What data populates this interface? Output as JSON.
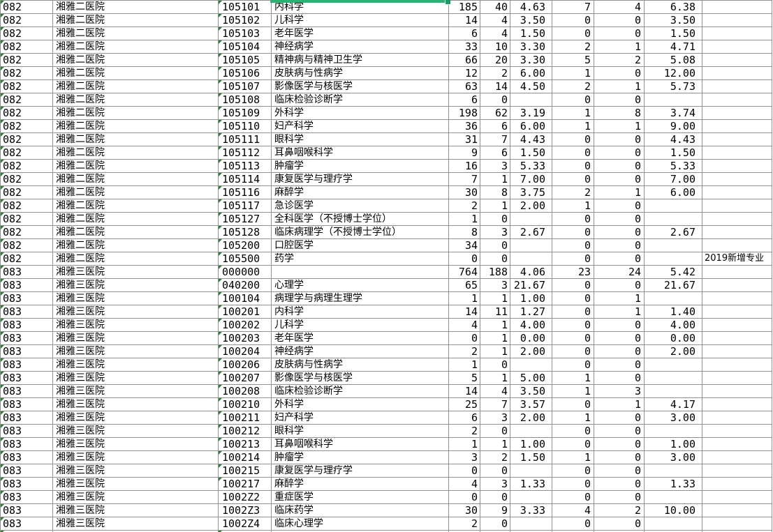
{
  "colors": {
    "gridline": "#909090",
    "triangle": "#2E7D32",
    "selection": "#2BB273",
    "selection_handle": "#12A05F",
    "cell_text": "#000000",
    "background": "#FFFFFF"
  },
  "selection": {
    "note_visible_part": "bottom-border-and-fill-handle"
  },
  "table": {
    "rows": [
      {
        "org_code": "082",
        "org_name": "湘雅二医院",
        "major_code": "105101",
        "major_name": "内科学",
        "n1": "185",
        "n2": "40",
        "r1": "4.63",
        "n3": "7",
        "n4": "4",
        "r2": "6.38",
        "note": ""
      },
      {
        "org_code": "082",
        "org_name": "湘雅二医院",
        "major_code": "105102",
        "major_name": "儿科学",
        "n1": "14",
        "n2": "4",
        "r1": "3.50",
        "n3": "0",
        "n4": "0",
        "r2": "3.50",
        "note": ""
      },
      {
        "org_code": "082",
        "org_name": "湘雅二医院",
        "major_code": "105103",
        "major_name": "老年医学",
        "n1": "6",
        "n2": "4",
        "r1": "1.50",
        "n3": "0",
        "n4": "0",
        "r2": "1.50",
        "note": ""
      },
      {
        "org_code": "082",
        "org_name": "湘雅二医院",
        "major_code": "105104",
        "major_name": "神经病学",
        "n1": "33",
        "n2": "10",
        "r1": "3.30",
        "n3": "2",
        "n4": "1",
        "r2": "4.71",
        "note": ""
      },
      {
        "org_code": "082",
        "org_name": "湘雅二医院",
        "major_code": "105105",
        "major_name": "精神病与精神卫生学",
        "n1": "66",
        "n2": "20",
        "r1": "3.30",
        "n3": "5",
        "n4": "2",
        "r2": "5.08",
        "note": ""
      },
      {
        "org_code": "082",
        "org_name": "湘雅二医院",
        "major_code": "105106",
        "major_name": "皮肤病与性病学",
        "n1": "12",
        "n2": "2",
        "r1": "6.00",
        "n3": "1",
        "n4": "0",
        "r2": "12.00",
        "note": ""
      },
      {
        "org_code": "082",
        "org_name": "湘雅二医院",
        "major_code": "105107",
        "major_name": "影像医学与核医学",
        "n1": "63",
        "n2": "14",
        "r1": "4.50",
        "n3": "2",
        "n4": "1",
        "r2": "5.73",
        "note": ""
      },
      {
        "org_code": "082",
        "org_name": "湘雅二医院",
        "major_code": "105108",
        "major_name": "临床检验诊断学",
        "n1": "6",
        "n2": "0",
        "r1": "",
        "n3": "0",
        "n4": "0",
        "r2": "",
        "note": ""
      },
      {
        "org_code": "082",
        "org_name": "湘雅二医院",
        "major_code": "105109",
        "major_name": "外科学",
        "n1": "198",
        "n2": "62",
        "r1": "3.19",
        "n3": "1",
        "n4": "8",
        "r2": "3.74",
        "note": ""
      },
      {
        "org_code": "082",
        "org_name": "湘雅二医院",
        "major_code": "105110",
        "major_name": "妇产科学",
        "n1": "36",
        "n2": "6",
        "r1": "6.00",
        "n3": "1",
        "n4": "1",
        "r2": "9.00",
        "note": ""
      },
      {
        "org_code": "082",
        "org_name": "湘雅二医院",
        "major_code": "105111",
        "major_name": "眼科学",
        "n1": "31",
        "n2": "7",
        "r1": "4.43",
        "n3": "0",
        "n4": "0",
        "r2": "4.43",
        "note": ""
      },
      {
        "org_code": "082",
        "org_name": "湘雅二医院",
        "major_code": "105112",
        "major_name": "耳鼻咽喉科学",
        "n1": "9",
        "n2": "6",
        "r1": "1.50",
        "n3": "0",
        "n4": "0",
        "r2": "1.50",
        "note": ""
      },
      {
        "org_code": "082",
        "org_name": "湘雅二医院",
        "major_code": "105113",
        "major_name": "肿瘤学",
        "n1": "16",
        "n2": "3",
        "r1": "5.33",
        "n3": "0",
        "n4": "0",
        "r2": "5.33",
        "note": ""
      },
      {
        "org_code": "082",
        "org_name": "湘雅二医院",
        "major_code": "105114",
        "major_name": "康复医学与理疗学",
        "n1": "7",
        "n2": "1",
        "r1": "7.00",
        "n3": "0",
        "n4": "0",
        "r2": "7.00",
        "note": ""
      },
      {
        "org_code": "082",
        "org_name": "湘雅二医院",
        "major_code": "105116",
        "major_name": "麻醉学",
        "n1": "30",
        "n2": "8",
        "r1": "3.75",
        "n3": "2",
        "n4": "1",
        "r2": "6.00",
        "note": ""
      },
      {
        "org_code": "082",
        "org_name": "湘雅二医院",
        "major_code": "105117",
        "major_name": "急诊医学",
        "n1": "2",
        "n2": "1",
        "r1": "2.00",
        "n3": "1",
        "n4": "0",
        "r2": "",
        "note": ""
      },
      {
        "org_code": "082",
        "org_name": "湘雅二医院",
        "major_code": "105127",
        "major_name": "全科医学（不授博士学位）",
        "n1": "1",
        "n2": "0",
        "r1": "",
        "n3": "0",
        "n4": "0",
        "r2": "",
        "note": ""
      },
      {
        "org_code": "082",
        "org_name": "湘雅二医院",
        "major_code": "105128",
        "major_name": "临床病理学（不授博士学位）",
        "n1": "8",
        "n2": "3",
        "r1": "2.67",
        "n3": "0",
        "n4": "0",
        "r2": "2.67",
        "note": ""
      },
      {
        "org_code": "082",
        "org_name": "湘雅二医院",
        "major_code": "105200",
        "major_name": "口腔医学",
        "n1": "34",
        "n2": "0",
        "r1": "",
        "n3": "0",
        "n4": "0",
        "r2": "",
        "note": ""
      },
      {
        "org_code": "082",
        "org_name": "湘雅二医院",
        "major_code": "105500",
        "major_name": "药学",
        "n1": "0",
        "n2": "0",
        "r1": "",
        "n3": "0",
        "n4": "0",
        "r2": "",
        "note": "2019新增专业"
      },
      {
        "org_code": "083",
        "org_name": "湘雅三医院",
        "major_code": "000000",
        "major_name": "",
        "n1": "764",
        "n2": "188",
        "r1": "4.06",
        "n3": "23",
        "n4": "24",
        "r2": "5.42",
        "note": ""
      },
      {
        "org_code": "083",
        "org_name": "湘雅三医院",
        "major_code": "040200",
        "major_name": "心理学",
        "n1": "65",
        "n2": "3",
        "r1": "21.67",
        "n3": "0",
        "n4": "0",
        "r2": "21.67",
        "note": ""
      },
      {
        "org_code": "083",
        "org_name": "湘雅三医院",
        "major_code": "100104",
        "major_name": "病理学与病理生理学",
        "n1": "1",
        "n2": "1",
        "r1": "1.00",
        "n3": "0",
        "n4": "1",
        "r2": "",
        "note": ""
      },
      {
        "org_code": "083",
        "org_name": "湘雅三医院",
        "major_code": "100201",
        "major_name": "内科学",
        "n1": "14",
        "n2": "11",
        "r1": "1.27",
        "n3": "0",
        "n4": "1",
        "r2": "1.40",
        "note": ""
      },
      {
        "org_code": "083",
        "org_name": "湘雅三医院",
        "major_code": "100202",
        "major_name": "儿科学",
        "n1": "4",
        "n2": "1",
        "r1": "4.00",
        "n3": "0",
        "n4": "0",
        "r2": "4.00",
        "note": ""
      },
      {
        "org_code": "083",
        "org_name": "湘雅三医院",
        "major_code": "100203",
        "major_name": "老年医学",
        "n1": "0",
        "n2": "1",
        "r1": "0.00",
        "n3": "0",
        "n4": "0",
        "r2": "0.00",
        "note": ""
      },
      {
        "org_code": "083",
        "org_name": "湘雅三医院",
        "major_code": "100204",
        "major_name": "神经病学",
        "n1": "2",
        "n2": "1",
        "r1": "2.00",
        "n3": "0",
        "n4": "0",
        "r2": "2.00",
        "note": ""
      },
      {
        "org_code": "083",
        "org_name": "湘雅三医院",
        "major_code": "100206",
        "major_name": "皮肤病与性病学",
        "n1": "1",
        "n2": "0",
        "r1": "",
        "n3": "0",
        "n4": "0",
        "r2": "",
        "note": ""
      },
      {
        "org_code": "083",
        "org_name": "湘雅三医院",
        "major_code": "100207",
        "major_name": "影像医学与核医学",
        "n1": "5",
        "n2": "1",
        "r1": "5.00",
        "n3": "1",
        "n4": "0",
        "r2": "",
        "note": ""
      },
      {
        "org_code": "083",
        "org_name": "湘雅三医院",
        "major_code": "100208",
        "major_name": "临床检验诊断学",
        "n1": "14",
        "n2": "4",
        "r1": "3.50",
        "n3": "1",
        "n4": "3",
        "r2": "",
        "note": ""
      },
      {
        "org_code": "083",
        "org_name": "湘雅三医院",
        "major_code": "100210",
        "major_name": "外科学",
        "n1": "25",
        "n2": "7",
        "r1": "3.57",
        "n3": "0",
        "n4": "1",
        "r2": "4.17",
        "note": ""
      },
      {
        "org_code": "083",
        "org_name": "湘雅三医院",
        "major_code": "100211",
        "major_name": "妇产科学",
        "n1": "6",
        "n2": "3",
        "r1": "2.00",
        "n3": "1",
        "n4": "0",
        "r2": "3.00",
        "note": ""
      },
      {
        "org_code": "083",
        "org_name": "湘雅三医院",
        "major_code": "100212",
        "major_name": "眼科学",
        "n1": "2",
        "n2": "0",
        "r1": "",
        "n3": "0",
        "n4": "0",
        "r2": "",
        "note": ""
      },
      {
        "org_code": "083",
        "org_name": "湘雅三医院",
        "major_code": "100213",
        "major_name": "耳鼻咽喉科学",
        "n1": "1",
        "n2": "1",
        "r1": "1.00",
        "n3": "0",
        "n4": "0",
        "r2": "1.00",
        "note": ""
      },
      {
        "org_code": "083",
        "org_name": "湘雅三医院",
        "major_code": "100214",
        "major_name": "肿瘤学",
        "n1": "3",
        "n2": "2",
        "r1": "1.50",
        "n3": "1",
        "n4": "0",
        "r2": "3.00",
        "note": ""
      },
      {
        "org_code": "083",
        "org_name": "湘雅三医院",
        "major_code": "100215",
        "major_name": "康复医学与理疗学",
        "n1": "0",
        "n2": "0",
        "r1": "",
        "n3": "0",
        "n4": "0",
        "r2": "",
        "note": ""
      },
      {
        "org_code": "083",
        "org_name": "湘雅三医院",
        "major_code": "100217",
        "major_name": "麻醉学",
        "n1": "4",
        "n2": "3",
        "r1": "1.33",
        "n3": "0",
        "n4": "0",
        "r2": "1.33",
        "note": ""
      },
      {
        "org_code": "083",
        "org_name": "湘雅三医院",
        "major_code": "1002Z2",
        "major_name": "重症医学",
        "n1": "0",
        "n2": "0",
        "r1": "",
        "n3": "0",
        "n4": "0",
        "r2": "",
        "note": ""
      },
      {
        "org_code": "083",
        "org_name": "湘雅三医院",
        "major_code": "1002Z3",
        "major_name": "临床药学",
        "n1": "30",
        "n2": "9",
        "r1": "3.33",
        "n3": "4",
        "n4": "2",
        "r2": "10.00",
        "note": ""
      },
      {
        "org_code": "083",
        "org_name": "湘雅三医院",
        "major_code": "1002Z4",
        "major_name": "临床心理学",
        "n1": "2",
        "n2": "0",
        "r1": "",
        "n3": "0",
        "n4": "0",
        "r2": "",
        "note": ""
      },
      {
        "org_code": "",
        "org_name": "",
        "major_code": "",
        "major_name": "",
        "n1": "",
        "n2": "",
        "r1": "",
        "n3": "",
        "n4": "",
        "r2": "",
        "note": "",
        "force_triangles": true
      }
    ]
  }
}
